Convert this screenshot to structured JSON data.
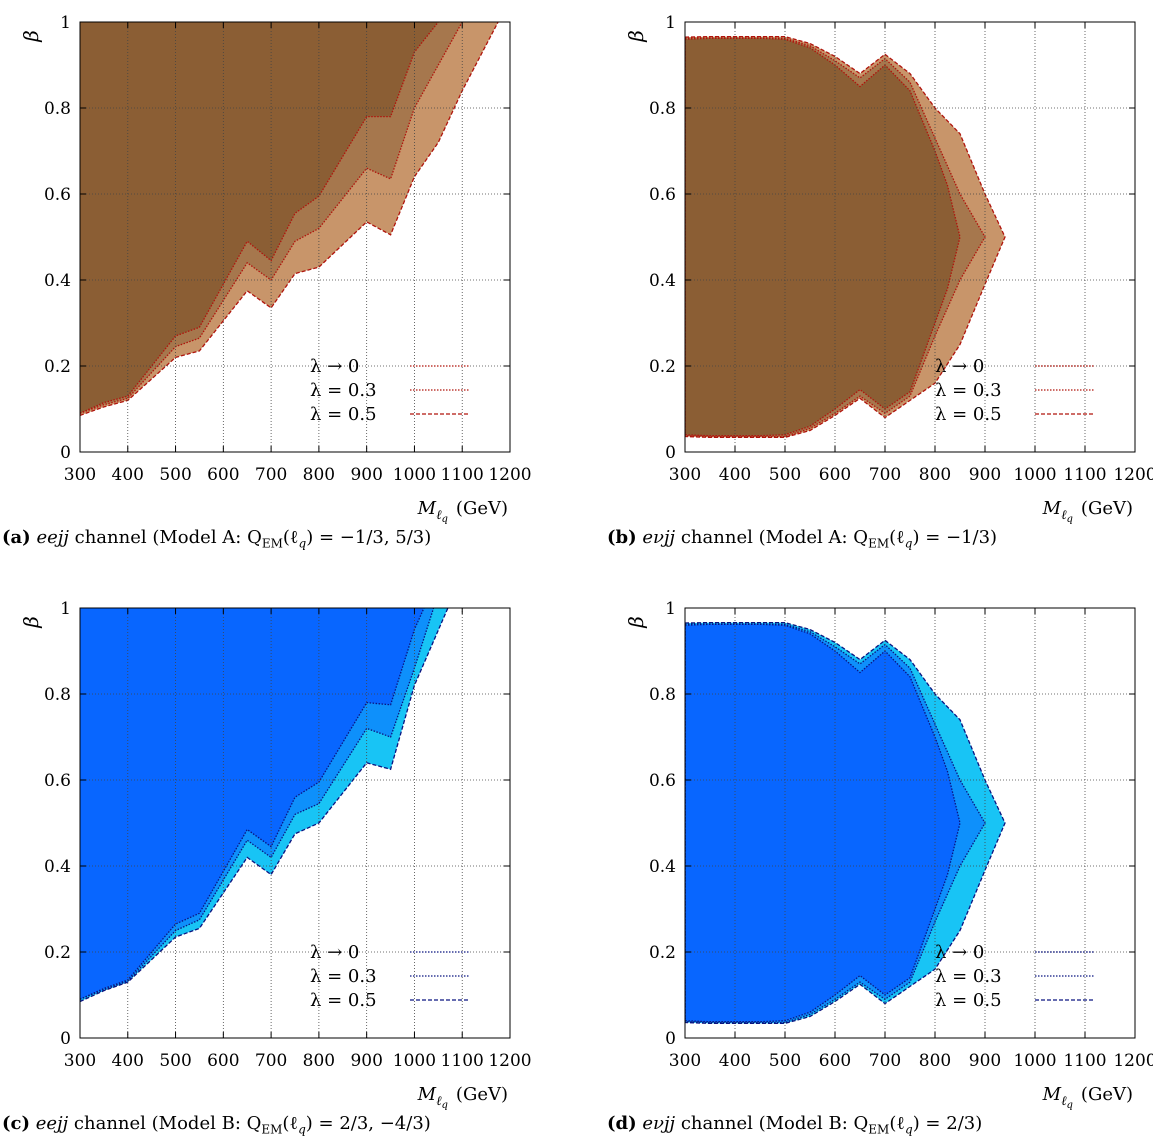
{
  "chart_data": [
    {
      "type": "area",
      "panel_id": "a",
      "caption": {
        "tag": "(a)",
        "channel": "eejj",
        "rest": " channel (Model A: Q",
        "sub": "EM",
        "tail": "(ℓ",
        "tail_sub": "q",
        "tail_end": ") = −1/3, 5/3)"
      },
      "ylabel": "β",
      "xlabel": "M",
      "xlabel_sub": "ℓ",
      "xlabel_sub2": "q",
      "xlabel_unit": "(GeV)",
      "xlim": [
        300,
        1200
      ],
      "ylim": [
        0,
        1
      ],
      "xticks": [
        "300",
        "400",
        "500",
        "600",
        "700",
        "800",
        "900",
        "1000",
        "1100",
        "1200"
      ],
      "yticks": [
        "0",
        "0.2",
        "0.4",
        "0.6",
        "0.8",
        "1"
      ],
      "grid": true,
      "legend_position": "bottom-right",
      "colors": {
        "inner": "#8b5e34",
        "outer": "#c8956a",
        "line": "#b0140c"
      },
      "series": [
        {
          "name": "λ → 0",
          "dash": "dotted",
          "x": [
            300,
            350,
            400,
            500,
            550,
            650,
            700,
            750,
            800,
            900,
            950,
            1000,
            1050
          ],
          "y": [
            0.09,
            0.115,
            0.13,
            0.27,
            0.29,
            0.49,
            0.445,
            0.555,
            0.595,
            0.78,
            0.78,
            0.93,
            1.0
          ]
        },
        {
          "name": "λ = 0.3",
          "dash": "dotted",
          "x": [
            300,
            350,
            400,
            500,
            550,
            650,
            700,
            750,
            800,
            900,
            950,
            1000,
            1100
          ],
          "y": [
            0.09,
            0.11,
            0.125,
            0.245,
            0.265,
            0.44,
            0.4,
            0.49,
            0.52,
            0.66,
            0.635,
            0.8,
            1.0
          ]
        },
        {
          "name": "λ = 0.5",
          "dash": "dashed",
          "x": [
            300,
            350,
            400,
            500,
            550,
            650,
            700,
            750,
            800,
            900,
            950,
            1000,
            1050,
            1100,
            1175
          ],
          "y": [
            0.085,
            0.105,
            0.12,
            0.22,
            0.235,
            0.375,
            0.335,
            0.415,
            0.43,
            0.535,
            0.505,
            0.64,
            0.72,
            0.84,
            1.0
          ]
        }
      ]
    },
    {
      "type": "area",
      "panel_id": "b",
      "caption": {
        "tag": "(b)",
        "channel": "eνjj",
        "rest": " channel (Model A: Q",
        "sub": "EM",
        "tail": "(ℓ",
        "tail_sub": "q",
        "tail_end": ") = −1/3)"
      },
      "ylabel": "β",
      "xlabel": "M",
      "xlabel_sub": "ℓ",
      "xlabel_sub2": "q",
      "xlabel_unit": "(GeV)",
      "xlim": [
        300,
        1200
      ],
      "ylim": [
        0,
        1
      ],
      "xticks": [
        "300",
        "400",
        "500",
        "600",
        "700",
        "800",
        "900",
        "1000",
        "1100",
        "1200"
      ],
      "yticks": [
        "0",
        "0.2",
        "0.4",
        "0.6",
        "0.8",
        "1"
      ],
      "grid": true,
      "legend_position": "bottom-right",
      "colors": {
        "inner": "#8b5e34",
        "outer": "#c8956a",
        "line": "#b0140c"
      },
      "series": [
        {
          "name": "λ → 0",
          "dash": "dotted",
          "x": [
            300,
            350,
            400,
            450,
            500,
            550,
            600,
            650,
            700,
            750,
            800,
            825,
            850,
            825,
            800,
            750,
            700,
            650,
            600,
            550,
            500,
            450,
            400,
            350,
            300
          ],
          "y": [
            0.96,
            0.962,
            0.962,
            0.962,
            0.96,
            0.94,
            0.9,
            0.85,
            0.9,
            0.84,
            0.7,
            0.62,
            0.5,
            0.38,
            0.3,
            0.14,
            0.1,
            0.145,
            0.1,
            0.06,
            0.04,
            0.038,
            0.038,
            0.038,
            0.04
          ]
        },
        {
          "name": "λ = 0.3",
          "dash": "dotted",
          "x": [
            300,
            350,
            400,
            450,
            500,
            550,
            600,
            650,
            700,
            750,
            800,
            850,
            900,
            850,
            800,
            750,
            700,
            650,
            600,
            550,
            500,
            450,
            400,
            350,
            300
          ],
          "y": [
            0.962,
            0.963,
            0.963,
            0.963,
            0.962,
            0.945,
            0.91,
            0.87,
            0.915,
            0.86,
            0.73,
            0.6,
            0.5,
            0.4,
            0.27,
            0.13,
            0.09,
            0.13,
            0.09,
            0.055,
            0.036,
            0.036,
            0.036,
            0.036,
            0.038
          ]
        },
        {
          "name": "λ = 0.5",
          "dash": "dashed",
          "x": [
            300,
            350,
            400,
            450,
            500,
            550,
            600,
            650,
            700,
            750,
            800,
            850,
            900,
            940,
            900,
            850,
            800,
            750,
            700,
            650,
            600,
            550,
            500,
            450,
            400,
            350,
            300
          ],
          "y": [
            0.965,
            0.966,
            0.966,
            0.966,
            0.966,
            0.95,
            0.92,
            0.88,
            0.925,
            0.88,
            0.8,
            0.74,
            0.6,
            0.5,
            0.39,
            0.25,
            0.16,
            0.12,
            0.08,
            0.125,
            0.085,
            0.05,
            0.034,
            0.034,
            0.034,
            0.034,
            0.036
          ]
        }
      ]
    },
    {
      "type": "area",
      "panel_id": "c",
      "caption": {
        "tag": "(c)",
        "channel": "eejj",
        "rest": " channel (Model B: Q",
        "sub": "EM",
        "tail": "(ℓ",
        "tail_sub": "q",
        "tail_end": ") = 2/3, −4/3)"
      },
      "ylabel": "β",
      "xlabel": "M",
      "xlabel_sub": "ℓ",
      "xlabel_sub2": "q",
      "xlabel_unit": "(GeV)",
      "xlim": [
        300,
        1200
      ],
      "ylim": [
        0,
        1
      ],
      "xticks": [
        "300",
        "400",
        "500",
        "600",
        "700",
        "800",
        "900",
        "1000",
        "1100",
        "1200"
      ],
      "yticks": [
        "0",
        "0.2",
        "0.4",
        "0.6",
        "0.8",
        "1"
      ],
      "grid": true,
      "legend_position": "bottom-right",
      "colors": {
        "inner": "#0866ff",
        "outer": "#18c4f5",
        "line": "#0a1480"
      },
      "series": [
        {
          "name": "λ → 0",
          "dash": "dotted",
          "x": [
            300,
            350,
            400,
            500,
            550,
            650,
            700,
            750,
            800,
            900,
            950,
            1000,
            1020
          ],
          "y": [
            0.09,
            0.115,
            0.135,
            0.265,
            0.29,
            0.485,
            0.445,
            0.56,
            0.595,
            0.78,
            0.775,
            0.95,
            1.0
          ]
        },
        {
          "name": "λ = 0.3",
          "dash": "dotted",
          "x": [
            300,
            350,
            400,
            500,
            550,
            650,
            700,
            750,
            800,
            900,
            950,
            1000,
            1040
          ],
          "y": [
            0.09,
            0.112,
            0.132,
            0.25,
            0.275,
            0.46,
            0.42,
            0.52,
            0.545,
            0.72,
            0.7,
            0.86,
            1.0
          ]
        },
        {
          "name": "λ = 0.5",
          "dash": "dashed",
          "x": [
            300,
            350,
            400,
            500,
            550,
            650,
            700,
            750,
            800,
            900,
            950,
            1000,
            1070
          ],
          "y": [
            0.085,
            0.11,
            0.13,
            0.235,
            0.255,
            0.42,
            0.38,
            0.475,
            0.5,
            0.64,
            0.625,
            0.82,
            1.0
          ]
        }
      ]
    },
    {
      "type": "area",
      "panel_id": "d",
      "caption": {
        "tag": "(d)",
        "channel": "eνjj",
        "rest": " channel (Model B: Q",
        "sub": "EM",
        "tail": "(ℓ",
        "tail_sub": "q",
        "tail_end": ") = 2/3)"
      },
      "ylabel": "β",
      "xlabel": "M",
      "xlabel_sub": "ℓ",
      "xlabel_sub2": "q",
      "xlabel_unit": "(GeV)",
      "xlim": [
        300,
        1200
      ],
      "ylim": [
        0,
        1
      ],
      "xticks": [
        "300",
        "400",
        "500",
        "600",
        "700",
        "800",
        "900",
        "1000",
        "1100",
        "1200"
      ],
      "yticks": [
        "0",
        "0.2",
        "0.4",
        "0.6",
        "0.8",
        "1"
      ],
      "grid": true,
      "legend_position": "bottom-right",
      "colors": {
        "inner": "#0866ff",
        "outer": "#18c4f5",
        "line": "#0a1480"
      },
      "series": [
        {
          "name": "λ → 0",
          "dash": "dotted",
          "x": [
            300,
            350,
            400,
            450,
            500,
            550,
            600,
            650,
            700,
            750,
            800,
            825,
            850,
            825,
            800,
            750,
            700,
            650,
            600,
            550,
            500,
            450,
            400,
            350,
            300
          ],
          "y": [
            0.96,
            0.962,
            0.962,
            0.962,
            0.96,
            0.94,
            0.9,
            0.85,
            0.9,
            0.84,
            0.7,
            0.62,
            0.5,
            0.38,
            0.3,
            0.14,
            0.1,
            0.145,
            0.1,
            0.06,
            0.04,
            0.038,
            0.038,
            0.038,
            0.04
          ]
        },
        {
          "name": "λ = 0.3",
          "dash": "dotted",
          "x": [
            300,
            350,
            400,
            450,
            500,
            550,
            600,
            650,
            700,
            750,
            800,
            850,
            900,
            850,
            800,
            750,
            700,
            650,
            600,
            550,
            500,
            450,
            400,
            350,
            300
          ],
          "y": [
            0.962,
            0.963,
            0.963,
            0.963,
            0.962,
            0.945,
            0.91,
            0.87,
            0.915,
            0.86,
            0.73,
            0.6,
            0.5,
            0.4,
            0.27,
            0.13,
            0.09,
            0.13,
            0.09,
            0.055,
            0.036,
            0.036,
            0.036,
            0.036,
            0.038
          ]
        },
        {
          "name": "λ = 0.5",
          "dash": "dashed",
          "x": [
            300,
            350,
            400,
            450,
            500,
            550,
            600,
            650,
            700,
            750,
            800,
            850,
            900,
            940,
            900,
            850,
            800,
            750,
            700,
            650,
            600,
            550,
            500,
            450,
            400,
            350,
            300
          ],
          "y": [
            0.965,
            0.966,
            0.966,
            0.966,
            0.966,
            0.95,
            0.92,
            0.88,
            0.925,
            0.88,
            0.8,
            0.74,
            0.6,
            0.5,
            0.39,
            0.25,
            0.16,
            0.12,
            0.08,
            0.125,
            0.085,
            0.05,
            0.034,
            0.034,
            0.034,
            0.034,
            0.036
          ]
        }
      ]
    }
  ]
}
